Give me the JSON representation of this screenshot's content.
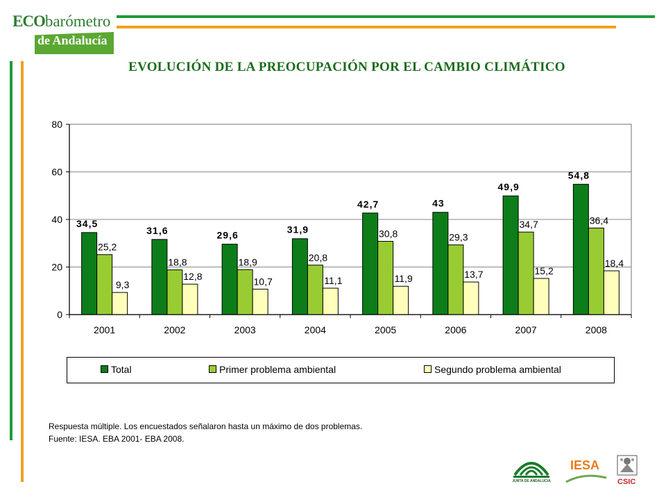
{
  "branding": {
    "logo_line1_eco": "ECO",
    "logo_line1_rest": "barómetro",
    "logo_line2": "de Andalucía",
    "junta_text": "JUNTA DE ANDALUCIA",
    "iesa_text": "IESA",
    "csic_text": "CSIC"
  },
  "colors": {
    "green_line": "#1e9b3c",
    "orange_line": "#f0a020",
    "total": "#0d7d1a",
    "primer": "#99cc33",
    "segundo": "#ffffbb"
  },
  "title": "EVOLUCIÓN DE LA PREOCUPACIÓN POR EL CAMBIO CLIMÁTICO",
  "chart_data": {
    "type": "bar",
    "categories": [
      "2001",
      "2002",
      "2003",
      "2004",
      "2005",
      "2006",
      "2007",
      "2008"
    ],
    "series": [
      {
        "name": "Total",
        "values": [
          34.5,
          31.6,
          29.6,
          31.9,
          42.7,
          43,
          49.9,
          54.8
        ],
        "labels": [
          "34,5",
          "31,6",
          "29,6",
          "31,9",
          "42,7",
          "43",
          "49,9",
          "54,8"
        ]
      },
      {
        "name": "Primer problema ambiental",
        "values": [
          25.2,
          18.8,
          18.9,
          20.8,
          30.8,
          29.3,
          34.7,
          36.4
        ],
        "labels": [
          "25,2",
          "18,8",
          "18,9",
          "20,8",
          "30,8",
          "29,3",
          "34,7",
          "36,4"
        ]
      },
      {
        "name": "Segundo problema ambiental",
        "values": [
          9.3,
          12.8,
          10.7,
          11.1,
          11.9,
          13.7,
          15.2,
          18.4
        ],
        "labels": [
          "9,3",
          "12,8",
          "10,7",
          "11,1",
          "11,9",
          "13,7",
          "15,2",
          "18,4"
        ]
      }
    ],
    "ylim": [
      0,
      80
    ],
    "yticks": [
      "0",
      "20",
      "40",
      "60",
      "80"
    ],
    "grid": true,
    "legend_position": "bottom"
  },
  "notes": {
    "line1": "Respuesta múltiple. Los encuestados señalaron hasta un máximo de dos problemas.",
    "line2": "Fuente: IESA. EBA 2001- EBA 2008."
  }
}
